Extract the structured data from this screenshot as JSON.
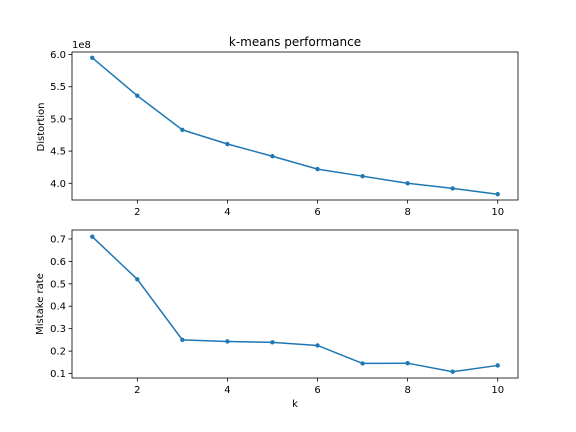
{
  "chart_data": [
    {
      "type": "line",
      "title": "k-means performance",
      "xlabel": "",
      "ylabel": "Distortion",
      "offset_label": "1e8",
      "x": [
        1,
        2,
        3,
        4,
        5,
        6,
        7,
        8,
        9,
        10
      ],
      "series": [
        {
          "values": [
            5.95,
            5.36,
            4.83,
            4.61,
            4.42,
            4.22,
            4.11,
            4.0,
            3.92,
            3.83
          ]
        }
      ],
      "xlim": [
        0.55,
        10.45
      ],
      "ylim": [
        3.74,
        6.04
      ],
      "xticks": [
        2,
        4,
        6,
        8,
        10
      ],
      "xtick_labels": [
        "2",
        "4",
        "6",
        "8",
        "10"
      ],
      "yticks": [
        4.0,
        4.5,
        5.0,
        5.5,
        6.0
      ],
      "ytick_labels": [
        "4.0",
        "4.5",
        "5.0",
        "5.5",
        "6.0"
      ],
      "grid": false,
      "color": "#1f77b4",
      "marker": "point"
    },
    {
      "type": "line",
      "title": "",
      "xlabel": "k",
      "ylabel": "Mistake rate",
      "x": [
        1,
        2,
        3,
        4,
        5,
        6,
        7,
        8,
        9,
        10
      ],
      "series": [
        {
          "values": [
            0.71,
            0.52,
            0.25,
            0.243,
            0.239,
            0.225,
            0.145,
            0.146,
            0.108,
            0.136
          ]
        }
      ],
      "xlim": [
        0.55,
        10.45
      ],
      "ylim": [
        0.08,
        0.74
      ],
      "xticks": [
        2,
        4,
        6,
        8,
        10
      ],
      "xtick_labels": [
        "2",
        "4",
        "6",
        "8",
        "10"
      ],
      "yticks": [
        0.1,
        0.2,
        0.3,
        0.4,
        0.5,
        0.6,
        0.7
      ],
      "ytick_labels": [
        "0.1",
        "0.2",
        "0.3",
        "0.4",
        "0.5",
        "0.6",
        "0.7"
      ],
      "grid": false,
      "color": "#1f77b4",
      "marker": "point"
    }
  ]
}
